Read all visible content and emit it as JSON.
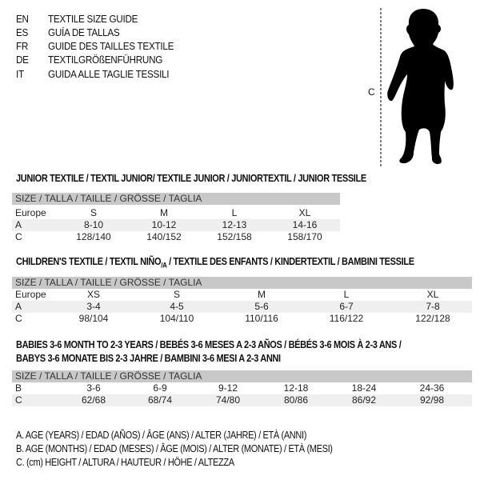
{
  "languages": [
    {
      "code": "EN",
      "title": "TEXTILE SIZE GUIDE"
    },
    {
      "code": "ES",
      "title": "GUÍA DE TALLAS"
    },
    {
      "code": "FR",
      "title": "GUIDE DES TAILLES TEXTILE"
    },
    {
      "code": "DE",
      "title": "TEXTILGRÖßENFÜHRUNG"
    },
    {
      "code": "IT",
      "title": "GUIDA ALLE TAGLIE TESSILI"
    }
  ],
  "figure": {
    "label": "C",
    "icon": "child-silhouette"
  },
  "junior": {
    "title": "JUNIOR TEXTILE / TEXTIL JUNIOR/ TEXTILE JUNIOR / JUNIORTEXTIL / JUNIOR TESSILE",
    "header": "SIZE / TALLA / TAILLE / GRÖSSE / TAGLIA",
    "rows": [
      {
        "label": "Europe",
        "cells": [
          "S",
          "M",
          "L",
          "XL"
        ]
      },
      {
        "label": "A",
        "cells": [
          "8-10",
          "10-12",
          "12-13",
          "14-16"
        ]
      },
      {
        "label": "C",
        "cells": [
          "128/140",
          "140/152",
          "152/158",
          "158/170"
        ]
      }
    ]
  },
  "children": {
    "title_main": "CHILDREN'S TEXTILE / TEXTIL NIÑO",
    "title_sub": "/A",
    "title_rest": " / TEXTILE DES ENFANTS / KINDERTEXTIL / BAMBINI TESSILE",
    "header": "SIZE / TALLA / TAILLE / GRÖSSE / TAGLIA",
    "rows": [
      {
        "label": "Europe",
        "cells": [
          "XS",
          "S",
          "M",
          "L",
          "XL"
        ]
      },
      {
        "label": "A",
        "cells": [
          "3-4",
          "4-5",
          "5-6",
          "6-7",
          "7-8"
        ]
      },
      {
        "label": "C",
        "cells": [
          "98/104",
          "104/110",
          "110/116",
          "116/122",
          "122/128"
        ]
      }
    ]
  },
  "babies": {
    "title_line1": "BABIES 3-6 MONTH TO 2-3 YEARS / BEBÉS 3-6 MESES A 2-3 AÑOS / BÉBÉS 3-6 MOIS À 2-3 ANS /",
    "title_line2": "BABYS 3-6 MONATE BIS 2-3 JAHRE / BAMBINI 3-6 MESI A 2-3 ANNI",
    "header": "SIZE / TALLA / TAILLE / GRÖSSE / TAGLIA",
    "rows": [
      {
        "label": "B",
        "cells": [
          "3-6",
          "6-9",
          "9-12",
          "12-18",
          "18-24",
          "24-36"
        ]
      },
      {
        "label": "C",
        "cells": [
          "62/68",
          "68/74",
          "74/80",
          "80/86",
          "86/92",
          "92/98"
        ]
      }
    ]
  },
  "legend": [
    "A. AGE (YEARS) / EDAD (AÑOS) / ÂGE (ANS) / ALTER (JAHRE) / ETÀ (ANNI)",
    "B. AGE (MONTHS) / EDAD (MESES) / ÂGE (MOIS) / ALTER (MONATE) / ETÀ (MESI)",
    "C. (cm) HEIGHT / ALTURA / HAUTEUR / HÖHE / ALTEZZA"
  ]
}
